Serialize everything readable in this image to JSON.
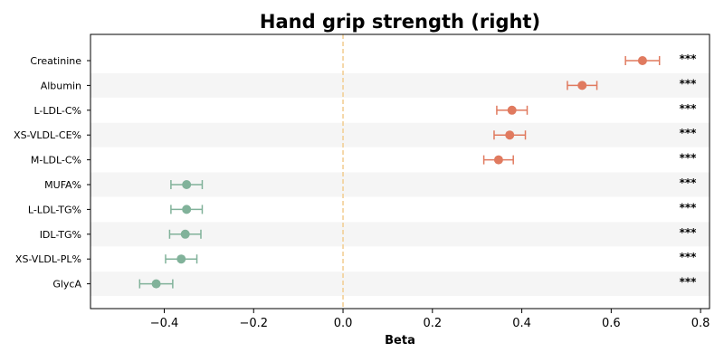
{
  "chart_data": {
    "type": "forest",
    "title": "Hand grip strength (right)",
    "xlabel": "Beta",
    "xlim": [
      -0.565,
      0.82
    ],
    "xticks": [
      -0.4,
      -0.2,
      0.0,
      0.2,
      0.4,
      0.6,
      0.8
    ],
    "xtick_labels": [
      "−0.4",
      "−0.2",
      "0.0",
      "0.2",
      "0.4",
      "0.6",
      "0.8"
    ],
    "reference_line": 0.0,
    "row_banding": true,
    "colors": {
      "positive": "#e07a5f",
      "negative": "#81b29a",
      "reference": "#f2cc8f",
      "band": "#f5f5f5"
    },
    "rows": [
      {
        "label": "Creatinine",
        "beta": 0.67,
        "ci_low": 0.632,
        "ci_high": 0.708,
        "significance": "***"
      },
      {
        "label": "Albumin",
        "beta": 0.535,
        "ci_low": 0.502,
        "ci_high": 0.568,
        "significance": "***"
      },
      {
        "label": "L-LDL-C%",
        "beta": 0.378,
        "ci_low": 0.344,
        "ci_high": 0.412,
        "significance": "***"
      },
      {
        "label": "XS-VLDL-CE%",
        "beta": 0.373,
        "ci_low": 0.338,
        "ci_high": 0.408,
        "significance": "***"
      },
      {
        "label": "M-LDL-C%",
        "beta": 0.348,
        "ci_low": 0.315,
        "ci_high": 0.381,
        "significance": "***"
      },
      {
        "label": "MUFA%",
        "beta": -0.35,
        "ci_low": -0.385,
        "ci_high": -0.315,
        "significance": "***"
      },
      {
        "label": "L-LDL-TG%",
        "beta": -0.35,
        "ci_low": -0.385,
        "ci_high": -0.315,
        "significance": "***"
      },
      {
        "label": "IDL-TG%",
        "beta": -0.353,
        "ci_low": -0.388,
        "ci_high": -0.318,
        "significance": "***"
      },
      {
        "label": "XS-VLDL-PL%",
        "beta": -0.362,
        "ci_low": -0.397,
        "ci_high": -0.327,
        "significance": "***"
      },
      {
        "label": "GlycA",
        "beta": -0.418,
        "ci_low": -0.455,
        "ci_high": -0.381,
        "significance": "***"
      }
    ]
  }
}
